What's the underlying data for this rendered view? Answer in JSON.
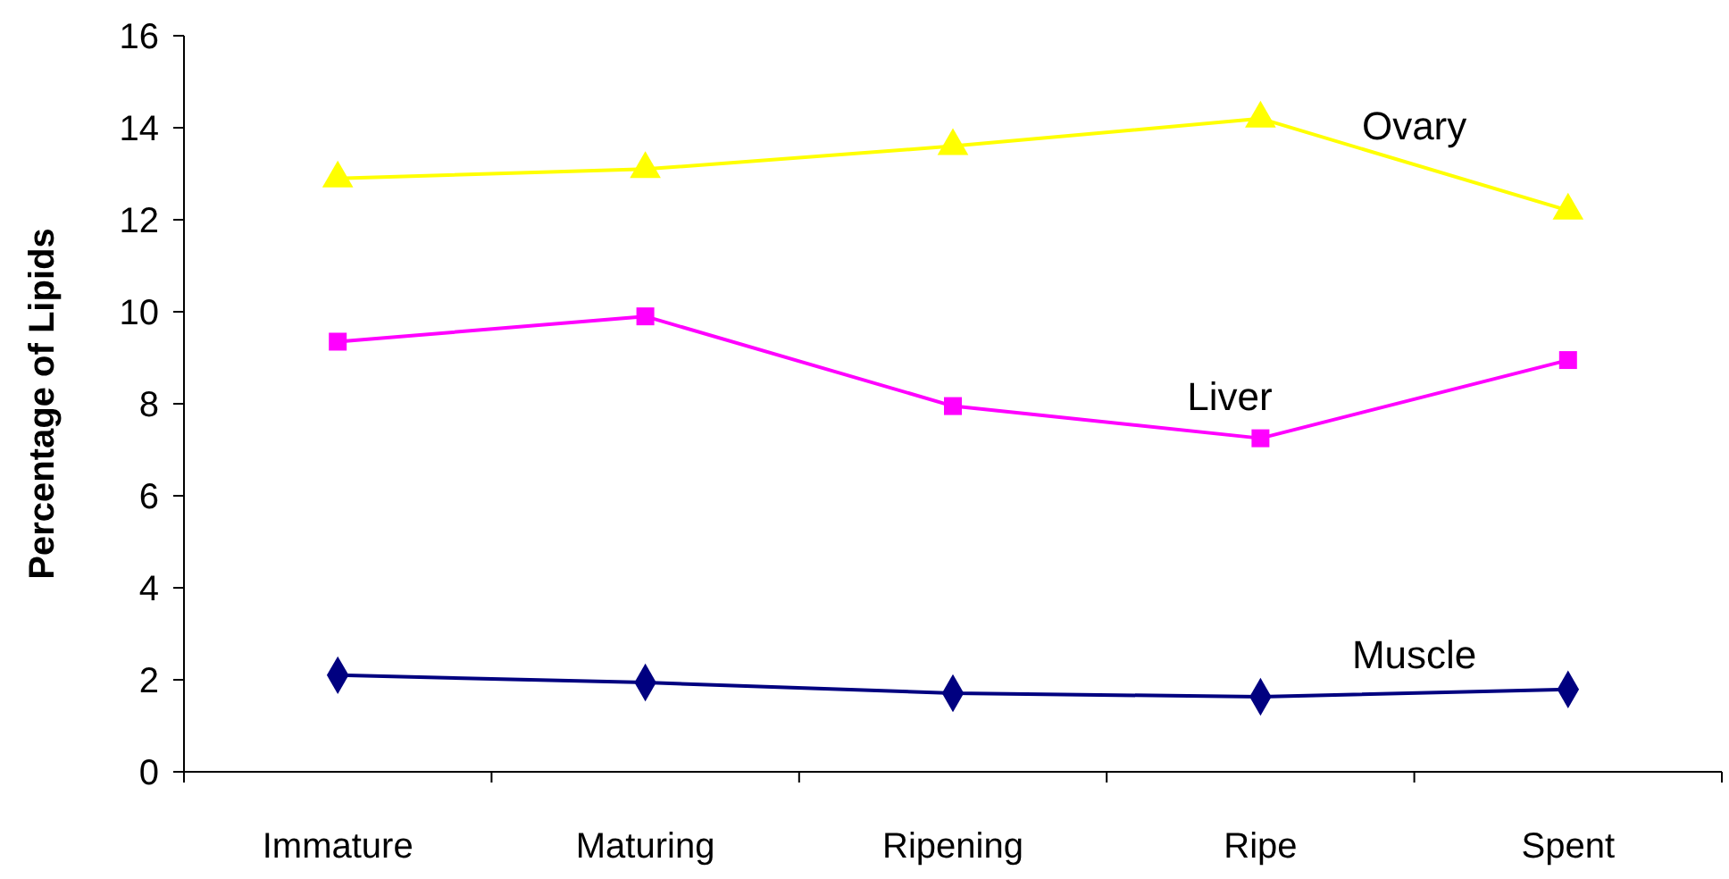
{
  "chart_data": {
    "type": "line",
    "ylabel": "Percentage of Lipids",
    "categories": [
      "Immature",
      "Maturing",
      "Ripening",
      "Ripe",
      "Spent"
    ],
    "series": [
      {
        "name": "Ovary",
        "color": "#ffff00",
        "marker": "triangle",
        "values": [
          12.9,
          13.1,
          13.6,
          14.2,
          12.2
        ]
      },
      {
        "name": "Liver",
        "color": "#ff00ff",
        "marker": "square",
        "values": [
          9.35,
          9.9,
          7.95,
          7.25,
          8.95
        ]
      },
      {
        "name": "Muscle",
        "color": "#000080",
        "marker": "diamond",
        "values": [
          2.1,
          1.94,
          1.71,
          1.63,
          1.79
        ]
      }
    ],
    "ylim": [
      0,
      16
    ],
    "yticks": [
      0,
      2,
      4,
      6,
      8,
      10,
      12,
      14,
      16
    ],
    "grid": false,
    "line_style": "solid"
  }
}
